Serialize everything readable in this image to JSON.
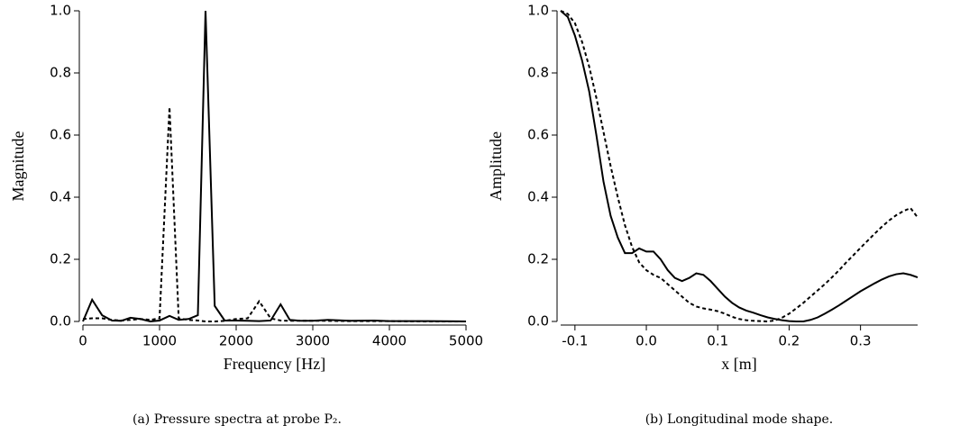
{
  "chart_data": [
    {
      "type": "line",
      "caption": "(a) Pressure spectra at probe P₂.",
      "xlabel": "Frequency [Hz]",
      "ylabel": "Magnitude",
      "x": [
        0,
        120,
        250,
        380,
        500,
        620,
        750,
        880,
        1000,
        1130,
        1250,
        1380,
        1500,
        1600,
        1720,
        1850,
        2000,
        2150,
        2300,
        2450,
        2580,
        2700,
        2850,
        3000,
        3200,
        3500,
        3800,
        4000,
        4500,
        5000
      ],
      "series": [
        {
          "color": "#000000",
          "line_style": "solid",
          "values": [
            0,
            0.07,
            0.02,
            0.003,
            0.002,
            0.012,
            0.008,
            0.0,
            0.003,
            0.018,
            0.005,
            0.008,
            0.02,
            1.0,
            0.05,
            0.003,
            0.003,
            0.002,
            0.001,
            0.003,
            0.055,
            0.005,
            0.002,
            0.002,
            0.005,
            0.002,
            0.003,
            0.001,
            0.001,
            0.0
          ]
        },
        {
          "color": "#000000",
          "line_style": "dashed",
          "values": [
            0.008,
            0.01,
            0.01,
            0.005,
            0.003,
            0.005,
            0.008,
            0.005,
            0.01,
            0.69,
            0.01,
            0.005,
            0.003,
            0.0,
            0.0,
            0.002,
            0.008,
            0.01,
            0.065,
            0.01,
            0.003,
            0.002,
            0.002,
            0.002,
            0.002,
            0.001,
            0.001,
            0.001,
            0.0,
            0.0
          ]
        }
      ],
      "xlim": [
        0,
        5000
      ],
      "ylim": [
        0,
        1.0
      ],
      "xticks": [
        0,
        1000,
        2000,
        3000,
        4000,
        5000
      ],
      "yticks": [
        {
          "value": 0,
          "label": "0.0"
        },
        0.2,
        0.4,
        0.6,
        0.8,
        {
          "value": 1.0,
          "label": "1.0"
        }
      ]
    },
    {
      "type": "line",
      "caption": "(b) Longitudinal mode shape.",
      "xlabel": "x [m]",
      "ylabel": "Amplitude",
      "x": [
        -0.12,
        -0.11,
        -0.1,
        -0.09,
        -0.08,
        -0.07,
        -0.06,
        -0.05,
        -0.04,
        -0.03,
        -0.02,
        -0.01,
        0.0,
        0.01,
        0.02,
        0.03,
        0.04,
        0.05,
        0.06,
        0.07,
        0.08,
        0.09,
        0.1,
        0.11,
        0.12,
        0.13,
        0.14,
        0.15,
        0.16,
        0.17,
        0.18,
        0.19,
        0.2,
        0.21,
        0.22,
        0.23,
        0.24,
        0.25,
        0.26,
        0.27,
        0.28,
        0.29,
        0.3,
        0.31,
        0.32,
        0.33,
        0.34,
        0.35,
        0.36,
        0.37,
        0.38
      ],
      "series": [
        {
          "color": "#000000",
          "line_style": "solid",
          "values": [
            1.0,
            0.98,
            0.92,
            0.84,
            0.74,
            0.6,
            0.45,
            0.34,
            0.27,
            0.22,
            0.22,
            0.235,
            0.225,
            0.225,
            0.2,
            0.165,
            0.14,
            0.13,
            0.14,
            0.155,
            0.15,
            0.13,
            0.105,
            0.08,
            0.06,
            0.045,
            0.035,
            0.028,
            0.02,
            0.013,
            0.008,
            0.004,
            0.001,
            0.0,
            0.0,
            0.005,
            0.013,
            0.025,
            0.038,
            0.052,
            0.067,
            0.082,
            0.097,
            0.11,
            0.123,
            0.135,
            0.145,
            0.152,
            0.155,
            0.15,
            0.142
          ]
        },
        {
          "color": "#000000",
          "line_style": "dashed",
          "values": [
            1.0,
            0.99,
            0.96,
            0.9,
            0.82,
            0.72,
            0.61,
            0.5,
            0.4,
            0.31,
            0.24,
            0.19,
            0.165,
            0.15,
            0.14,
            0.12,
            0.1,
            0.08,
            0.06,
            0.048,
            0.042,
            0.038,
            0.033,
            0.025,
            0.015,
            0.008,
            0.004,
            0.002,
            0.001,
            0.0,
            0.003,
            0.012,
            0.025,
            0.042,
            0.06,
            0.08,
            0.1,
            0.12,
            0.142,
            0.165,
            0.19,
            0.213,
            0.237,
            0.26,
            0.283,
            0.305,
            0.325,
            0.342,
            0.355,
            0.365,
            0.335
          ]
        }
      ],
      "xlim": [
        -0.12,
        0.38
      ],
      "ylim": [
        0,
        1.0
      ],
      "xticks": [
        -0.1,
        {
          "value": 0,
          "label": "0.0"
        },
        0.1,
        0.2,
        0.3
      ],
      "yticks": [
        {
          "value": 0,
          "label": "0.0"
        },
        0.2,
        0.4,
        0.6,
        0.8,
        {
          "value": 1.0,
          "label": "1.0"
        }
      ]
    }
  ]
}
